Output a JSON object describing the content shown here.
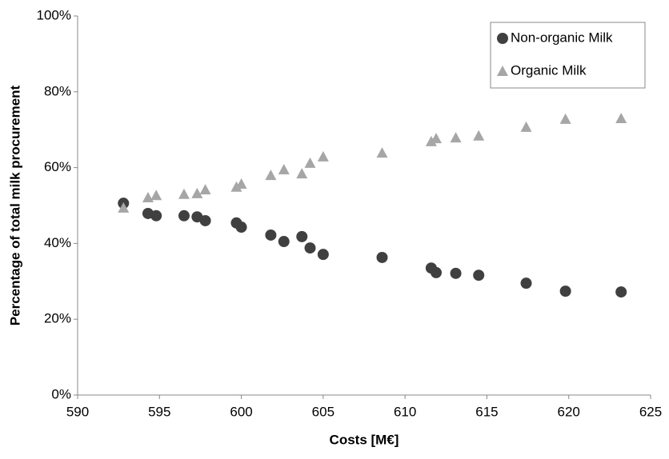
{
  "chart_data": {
    "type": "scatter",
    "x_label": "Costs [M€]",
    "y_label": "Percentage of total milk procurement",
    "xlim": [
      590,
      625
    ],
    "xticks": [
      590,
      595,
      600,
      605,
      610,
      615,
      620,
      625
    ],
    "ylim": [
      0,
      100
    ],
    "yticks": [
      {
        "value": 0,
        "label": "0%"
      },
      {
        "value": 20,
        "label": "20%"
      },
      {
        "value": 40,
        "label": "40%"
      },
      {
        "value": 60,
        "label": "60%"
      },
      {
        "value": 80,
        "label": "80%"
      },
      {
        "value": 100,
        "label": "100%"
      }
    ],
    "legend": "top-right",
    "series": [
      {
        "name": "Non-organic Milk",
        "color": "#404040",
        "marker": "circle",
        "x": [
          592.8,
          594.3,
          594.8,
          596.5,
          597.3,
          597.8,
          599.7,
          600.0,
          601.8,
          602.6,
          603.7,
          604.2,
          605.0,
          608.6,
          611.6,
          611.9,
          613.1,
          614.5,
          617.4,
          619.8,
          623.2
        ],
        "values": [
          50.6,
          47.9,
          47.3,
          47.3,
          47.0,
          46.0,
          45.4,
          44.3,
          42.2,
          40.5,
          41.8,
          38.8,
          37.1,
          36.3,
          33.5,
          32.3,
          32.1,
          31.6,
          29.5,
          27.4,
          27.2
        ]
      },
      {
        "name": "Organic Milk",
        "color": "#a6a6a6",
        "marker": "triangle",
        "x": [
          592.8,
          594.3,
          594.8,
          596.5,
          597.3,
          597.8,
          599.7,
          600.0,
          601.8,
          602.6,
          603.7,
          604.2,
          605.0,
          608.6,
          611.6,
          611.9,
          613.1,
          614.5,
          617.4,
          619.8,
          623.2
        ],
        "values": [
          49.4,
          52.1,
          52.7,
          53.0,
          53.2,
          54.2,
          54.9,
          55.7,
          58.0,
          59.5,
          58.4,
          61.2,
          62.9,
          63.9,
          66.9,
          67.7,
          67.9,
          68.4,
          70.7,
          72.8,
          73.0
        ]
      }
    ]
  }
}
